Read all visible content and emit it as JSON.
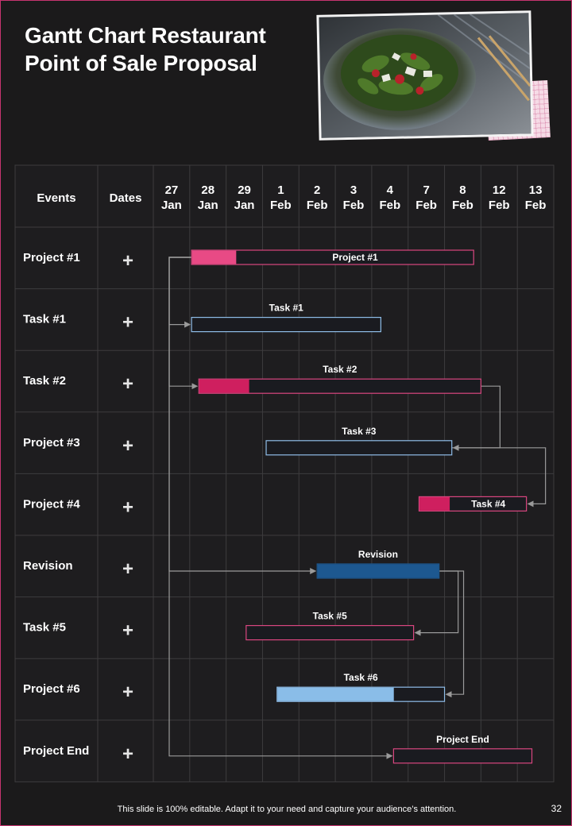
{
  "title": "Gantt Chart Restaurant Point of Sale Proposal",
  "footer": "This slide is 100% editable. Adapt it to your need and capture your audience’s attention.",
  "page_number": "32",
  "photo_alt": "salad-bowl-photo",
  "colors": {
    "pink": "#e84a85",
    "magenta": "#cf1f5f",
    "pink_outline": "#d9467f",
    "blue_outline": "#8fbde8",
    "navy": "#1d5890",
    "light_blue": "#8abde8",
    "grid": "#3d3c3e",
    "connector": "#9a9a9a"
  },
  "chart_data": {
    "type": "gantt",
    "title": "Gantt Chart Restaurant Point of Sale Proposal",
    "headers": {
      "events": "Events",
      "dates": "Dates"
    },
    "columns": [
      {
        "day": "27",
        "month": "Jan"
      },
      {
        "day": "28",
        "month": "Jan"
      },
      {
        "day": "29",
        "month": "Jan"
      },
      {
        "day": "1",
        "month": "Feb"
      },
      {
        "day": "2",
        "month": "Feb"
      },
      {
        "day": "3",
        "month": "Feb"
      },
      {
        "day": "4",
        "month": "Feb"
      },
      {
        "day": "7",
        "month": "Feb"
      },
      {
        "day": "8",
        "month": "Feb"
      },
      {
        "day": "12",
        "month": "Feb"
      },
      {
        "day": "13",
        "month": "Feb"
      }
    ],
    "rows": [
      {
        "event": "Project #1",
        "date_symbol": "+",
        "bar": {
          "label": "Project #1",
          "start": 1.05,
          "end": 8.8,
          "progress": 0.16,
          "fill": "pink",
          "outline": "pink_outline",
          "label_pos": "inside"
        }
      },
      {
        "event": "Task #1",
        "date_symbol": "+",
        "bar": {
          "label": "Task #1",
          "start": 1.05,
          "end": 6.25,
          "progress": 0,
          "fill": "none",
          "outline": "blue_outline",
          "label_pos": "above"
        }
      },
      {
        "event": "Task #2",
        "date_symbol": "+",
        "bar": {
          "label": "Task #2",
          "start": 1.25,
          "end": 9.0,
          "progress": 0.18,
          "fill": "magenta",
          "outline": "pink_outline",
          "label_pos": "above"
        }
      },
      {
        "event": "Project #3",
        "date_symbol": "+",
        "bar": {
          "label": "Task #3",
          "start": 3.1,
          "end": 8.2,
          "progress": 0,
          "fill": "none",
          "outline": "blue_outline",
          "label_pos": "above"
        }
      },
      {
        "event": "Project #4",
        "date_symbol": "+",
        "bar": {
          "label": "Task #4",
          "start": 7.3,
          "end": 10.25,
          "progress": 0.29,
          "fill": "magenta",
          "outline": "pink_outline",
          "label_pos": "inside"
        }
      },
      {
        "event": "Revision",
        "date_symbol": "+",
        "bar": {
          "label": "Revision",
          "start": 4.5,
          "end": 7.85,
          "progress": 1,
          "fill": "navy",
          "outline": "navy",
          "label_pos": "above"
        }
      },
      {
        "event": "Task #5",
        "date_symbol": "+",
        "bar": {
          "label": "Task #5",
          "start": 2.55,
          "end": 7.15,
          "progress": 0,
          "fill": "none",
          "outline": "pink_outline",
          "label_pos": "above"
        }
      },
      {
        "event": "Project #6",
        "date_symbol": "+",
        "bar": {
          "label": "Task #6",
          "start": 3.4,
          "end": 8.0,
          "progress": 0.7,
          "fill": "light_blue",
          "outline": "blue_outline",
          "label_pos": "above"
        }
      },
      {
        "event": "Project End",
        "date_symbol": "+",
        "bar": {
          "label": "Project End",
          "start": 6.6,
          "end": 10.4,
          "progress": 0,
          "fill": "none",
          "outline": "pink_outline",
          "label_pos": "above"
        }
      }
    ],
    "dependencies": [
      {
        "from": 0,
        "to": 1
      },
      {
        "from": 0,
        "to": 2
      },
      {
        "from": 0,
        "to": 5
      },
      {
        "from": 0,
        "to": 8
      },
      {
        "from": 2,
        "to": 3
      },
      {
        "from": 3,
        "to": 4
      },
      {
        "from": 5,
        "to": 6
      },
      {
        "from": 5,
        "to": 7
      }
    ]
  }
}
